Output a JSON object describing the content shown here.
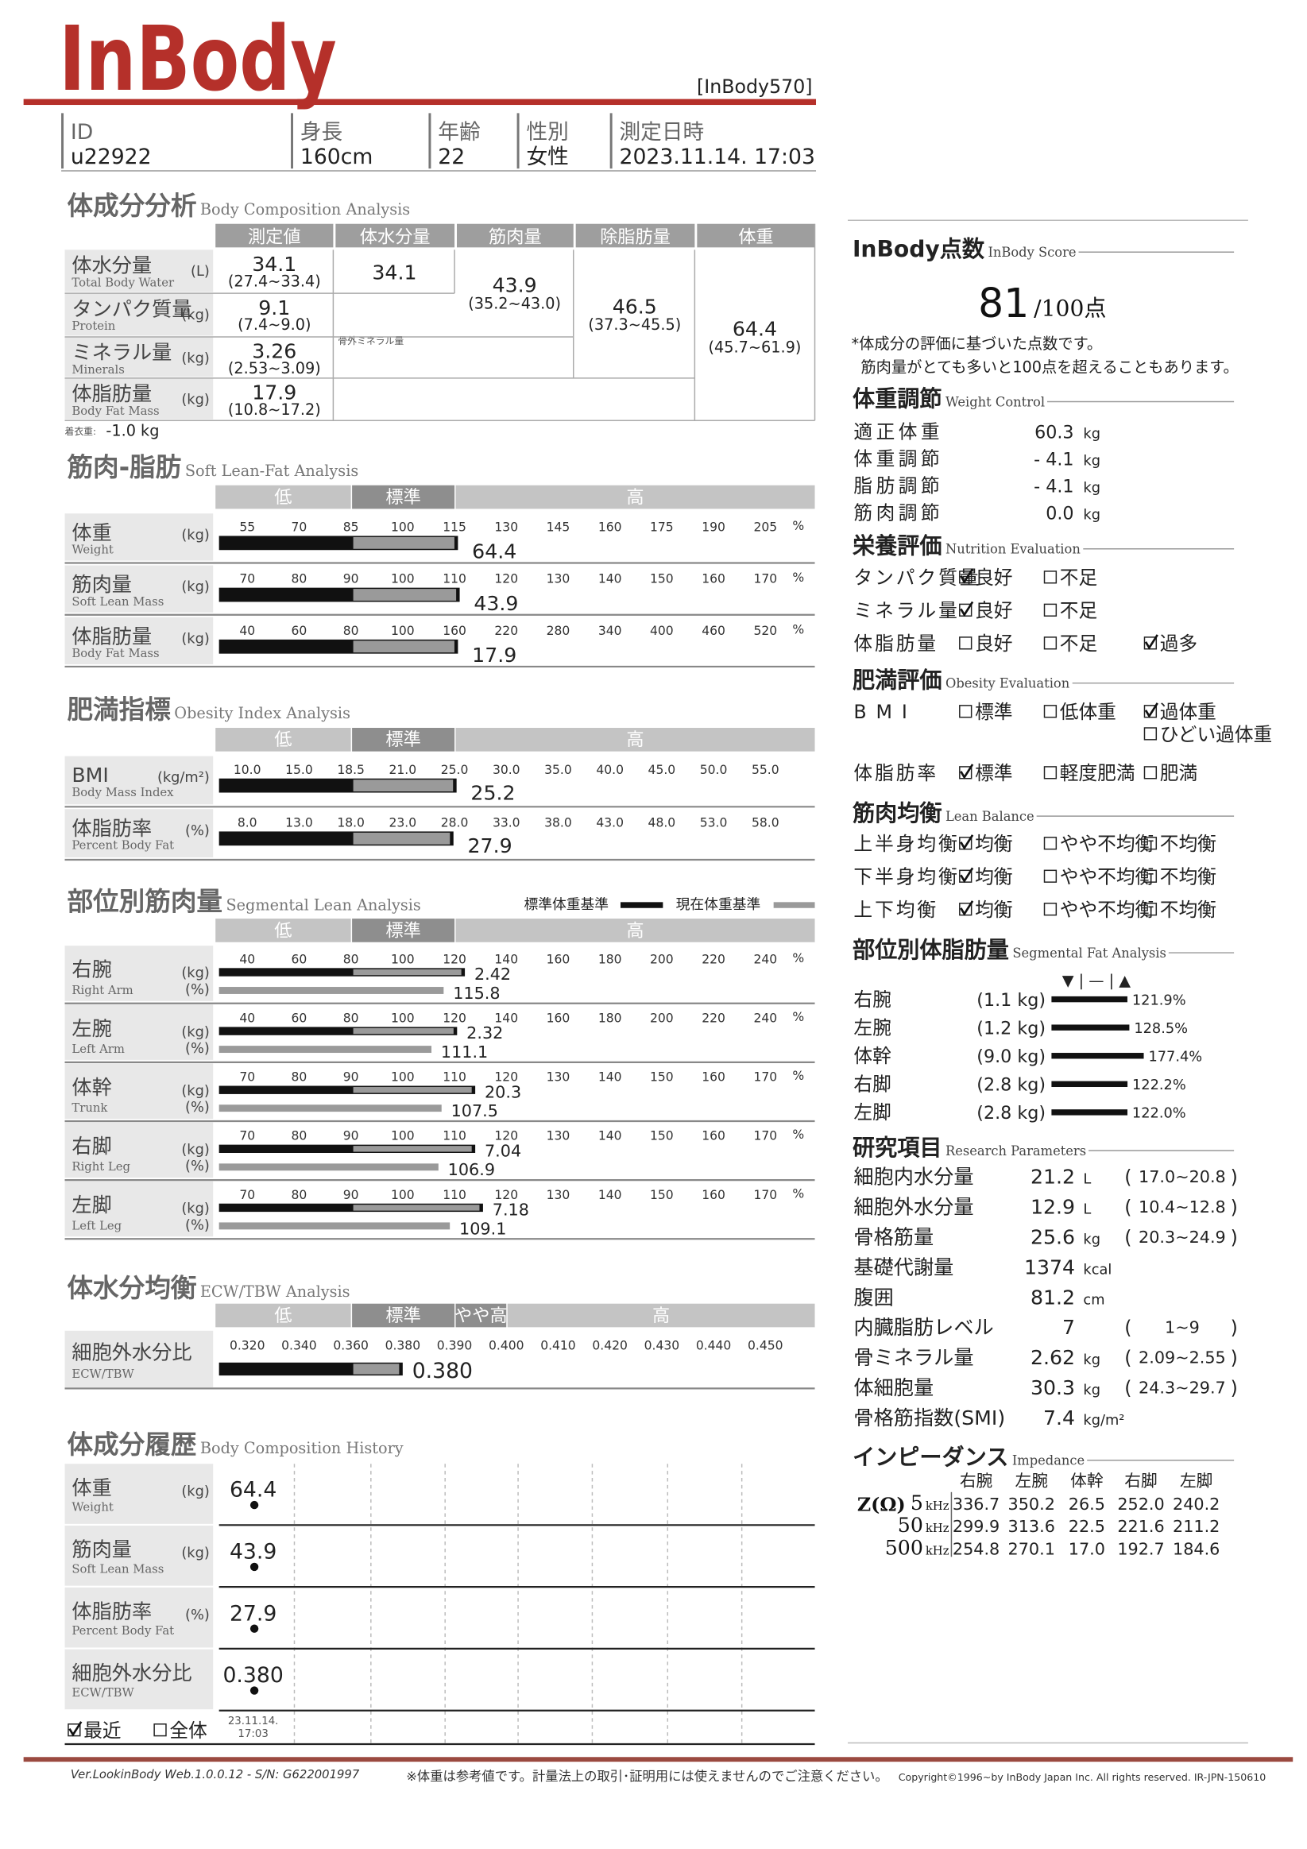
{
  "header": {
    "logo": "InBody",
    "model": "[InBody570]"
  },
  "info": [
    {
      "label": "ID",
      "value": "u22922"
    },
    {
      "label": "身長",
      "value": "160cm"
    },
    {
      "label": "年齢",
      "value": "22"
    },
    {
      "label": "性別",
      "value": "女性"
    },
    {
      "label": "測定日時",
      "value": "2023.11.14. 17:03"
    }
  ],
  "body_composition": {
    "title": "体成分分析",
    "subtitle": "Body Composition Analysis",
    "columns": [
      "測定値",
      "体水分量",
      "筋肉量",
      "除脂肪量",
      "体重"
    ],
    "rows": [
      {
        "name": "体水分量",
        "name_en": "Total Body Water",
        "unit": "(L)",
        "value": "34.1",
        "range": "(27.4~33.4)"
      },
      {
        "name": "タンパク質量",
        "name_en": "Protein",
        "unit": "(kg)",
        "value": "9.1",
        "range": "(7.4~9.0)"
      },
      {
        "name": "ミネラル量",
        "name_en": "Minerals",
        "unit": "(kg)",
        "value": "3.26",
        "range": "(2.53~3.09)"
      },
      {
        "name": "体脂肪量",
        "name_en": "Body Fat Mass",
        "unit": "(kg)",
        "value": "17.9",
        "range": "(10.8~17.2)"
      }
    ],
    "totals": [
      {
        "value": "34.1"
      },
      {
        "value": "43.9",
        "range": "(35.2~43.0)"
      },
      {
        "value": "46.5",
        "range": "(37.3~45.5)"
      },
      {
        "value": "64.4",
        "range": "(45.7~61.9)"
      }
    ],
    "note": "骨外ミネラル量",
    "clothes_label": "着衣重:",
    "clothes_value": "-1.0 kg"
  },
  "muscle_fat": {
    "title": "筋肉-脂肪",
    "subtitle": "Soft Lean-Fat Analysis",
    "bands": [
      "低",
      "標準",
      "高"
    ],
    "percent": "%",
    "rows": [
      {
        "name": "体重",
        "name_en": "Weight",
        "unit": "(kg)",
        "ticks": [
          55,
          70,
          85,
          100,
          115,
          130,
          145,
          160,
          175,
          190,
          205
        ],
        "value": 64.4,
        "bar": 116
      },
      {
        "name": "筋肉量",
        "name_en": "Soft Lean Mass",
        "unit": "(kg)",
        "ticks": [
          70,
          80,
          90,
          100,
          110,
          120,
          130,
          140,
          150,
          160,
          170
        ],
        "value": 43.9,
        "bar": 111
      },
      {
        "name": "体脂肪量",
        "name_en": "Body Fat Mass",
        "unit": "(kg)",
        "ticks": [
          40,
          60,
          80,
          100,
          160,
          220,
          280,
          340,
          400,
          460,
          520
        ],
        "value": 17.9,
        "bar": 164
      }
    ]
  },
  "obesity": {
    "title": "肥満指標",
    "subtitle": "Obesity Index Analysis",
    "bands": [
      "低",
      "標準",
      "高"
    ],
    "rows": [
      {
        "name": "BMI",
        "name_en": "Body Mass Index",
        "unit": "(kg/m²)",
        "ticks": [
          {
            "value": 10,
            "label": "10.0"
          },
          {
            "value": 15,
            "label": "15.0"
          },
          18.5,
          {
            "value": 21,
            "label": "21.0"
          },
          {
            "value": 25,
            "label": "25.0"
          },
          {
            "value": 30,
            "label": "30.0"
          },
          {
            "value": 35,
            "label": "35.0"
          },
          {
            "value": 40,
            "label": "40.0"
          },
          {
            "value": 45,
            "label": "45.0"
          },
          {
            "value": 50,
            "label": "50.0"
          },
          {
            "value": 55,
            "label": "55.0"
          }
        ],
        "value": 25.2
      },
      {
        "name": "体脂肪率",
        "name_en": "Percent Body Fat",
        "unit": "(%)",
        "ticks": [
          {
            "value": 8,
            "label": "8.0"
          },
          {
            "value": 13,
            "label": "13.0"
          },
          {
            "value": 18,
            "label": "18.0"
          },
          {
            "value": 23,
            "label": "23.0"
          },
          {
            "value": 28,
            "label": "28.0"
          },
          {
            "value": 33,
            "label": "33.0"
          },
          {
            "value": 38,
            "label": "38.0"
          },
          {
            "value": 43,
            "label": "43.0"
          },
          {
            "value": 48,
            "label": "48.0"
          },
          {
            "value": 53,
            "label": "53.0"
          },
          {
            "value": 58,
            "label": "58.0"
          }
        ],
        "value": 27.9
      }
    ]
  },
  "segmental_lean": {
    "title": "部位別筋肉量",
    "subtitle": "Segmental Lean Analysis",
    "bands": [
      "低",
      "標準",
      "高"
    ],
    "percent": "%",
    "legend": [
      "標準体重基準",
      "現在体重基準"
    ],
    "units": [
      "(kg)",
      "(%)"
    ],
    "rows": [
      {
        "name": "右腕",
        "name_en": "Right Arm",
        "ticks": [
          40,
          60,
          80,
          100,
          120,
          140,
          160,
          180,
          200,
          220,
          240
        ],
        "kg": 2.42,
        "kg_bar": 124,
        "pct": 115.8
      },
      {
        "name": "左腕",
        "name_en": "Left Arm",
        "ticks": [
          40,
          60,
          80,
          100,
          120,
          140,
          160,
          180,
          200,
          220,
          240
        ],
        "kg": 2.32,
        "kg_bar": 121,
        "pct": 111.1
      },
      {
        "name": "体幹",
        "name_en": "Trunk",
        "ticks": [
          70,
          80,
          90,
          100,
          110,
          120,
          130,
          140,
          150,
          160,
          170
        ],
        "kg": 20.3,
        "kg_bar": 114,
        "pct": 107.5
      },
      {
        "name": "右脚",
        "name_en": "Right Leg",
        "ticks": [
          70,
          80,
          90,
          100,
          110,
          120,
          130,
          140,
          150,
          160,
          170
        ],
        "kg": 7.04,
        "kg_bar": 114,
        "pct": 106.9
      },
      {
        "name": "左脚",
        "name_en": "Left Leg",
        "ticks": [
          70,
          80,
          90,
          100,
          110,
          120,
          130,
          140,
          150,
          160,
          170
        ],
        "kg": 7.18,
        "kg_bar": 115.5,
        "pct": 109.1
      }
    ]
  },
  "ecw": {
    "title": "体水分均衡",
    "subtitle": "ECW/TBW Analysis",
    "bands": [
      "低",
      "標準",
      "やや高",
      "高"
    ],
    "name": "細胞外水分比",
    "name_en": "ECW/TBW",
    "ticks": [
      {
        "value": 0.32,
        "label": "0.320"
      },
      {
        "value": 0.34,
        "label": "0.340"
      },
      {
        "value": 0.36,
        "label": "0.360"
      },
      {
        "value": 0.38,
        "label": "0.380"
      },
      {
        "value": 0.39,
        "label": "0.390"
      },
      {
        "value": 0.4,
        "label": "0.400"
      },
      {
        "value": 0.41,
        "label": "0.410"
      },
      {
        "value": 0.42,
        "label": "0.420"
      },
      {
        "value": 0.43,
        "label": "0.430"
      },
      {
        "value": 0.44,
        "label": "0.440"
      },
      {
        "value": 0.45,
        "label": "0.450"
      }
    ],
    "value": 0.38,
    "value_label": "0.380"
  },
  "history": {
    "title": "体成分履歴",
    "subtitle": "Body Composition History",
    "rows": [
      {
        "name": "体重",
        "name_en": "Weight",
        "unit": "(kg)",
        "value": 64.4,
        "label": "64.4"
      },
      {
        "name": "筋肉量",
        "name_en": "Soft Lean Mass",
        "unit": "(kg)",
        "value": 43.9,
        "label": "43.9"
      },
      {
        "name": "体脂肪率",
        "name_en": "Percent Body Fat",
        "unit": "(%)",
        "value": 27.9,
        "label": "27.9"
      },
      {
        "name": "細胞外水分比",
        "name_en": "ECW/TBW",
        "value": 0.38,
        "label": "0.380"
      }
    ],
    "options": [
      {
        "label": "最近",
        "checked": true
      },
      {
        "label": "全体",
        "checked": false
      }
    ],
    "date": "23.11.14.",
    "time": "17:03"
  },
  "score": {
    "title": "InBody点数",
    "subtitle": "InBody Score",
    "value": 81,
    "max": "/100点",
    "notes": [
      "*体成分の評価に基づいた点数です。",
      "筋肉量がとても多いと100点を超えることもあります。"
    ]
  },
  "weight_control": {
    "title": "体重調節",
    "subtitle": "Weight Control",
    "rows": [
      {
        "label": "適正体重",
        "value": "60.3",
        "unit": "kg"
      },
      {
        "label": "体重調節",
        "value": "- 4.1",
        "unit": "kg"
      },
      {
        "label": "脂肪調節",
        "value": "- 4.1",
        "unit": "kg"
      },
      {
        "label": "筋肉調節",
        "value": "0.0",
        "unit": "kg"
      }
    ]
  },
  "nutrition": {
    "title": "栄養評価",
    "subtitle": "Nutrition Evaluation",
    "rows": [
      {
        "label": "タンパク質量",
        "options": [
          {
            "label": "良好",
            "checked": true
          },
          {
            "label": "不足",
            "checked": false
          }
        ]
      },
      {
        "label": "ミネラル量",
        "options": [
          {
            "label": "良好",
            "checked": true
          },
          {
            "label": "不足",
            "checked": false
          }
        ]
      },
      {
        "label": "体脂肪量",
        "options": [
          {
            "label": "良好",
            "checked": false
          },
          {
            "label": "不足",
            "checked": false
          },
          {
            "label": "過多",
            "checked": true
          }
        ]
      }
    ]
  },
  "obesity_eval": {
    "title": "肥満評価",
    "subtitle": "Obesity Evaluation",
    "rows": [
      {
        "label": "BMI",
        "options": [
          {
            "label": "標準",
            "checked": false
          },
          {
            "label": "低体重",
            "checked": false
          },
          {
            "label": "過体重",
            "checked": true
          },
          {
            "label": "ひどい過体重",
            "checked": false
          }
        ]
      },
      {
        "label": "体脂肪率",
        "options": [
          {
            "label": "標準",
            "checked": true
          },
          {
            "label": "軽度肥満",
            "checked": false
          },
          {
            "label": "肥満",
            "checked": false
          }
        ]
      }
    ]
  },
  "lean_balance": {
    "title": "筋肉均衡",
    "subtitle": "Lean Balance",
    "rows": [
      {
        "label": "上半身均衡",
        "options": [
          {
            "label": "均衡",
            "checked": true
          },
          {
            "label": "やや不均衡",
            "checked": false
          },
          {
            "label": "不均衡",
            "checked": false
          }
        ]
      },
      {
        "label": "下半身均衡",
        "options": [
          {
            "label": "均衡",
            "checked": true
          },
          {
            "label": "やや不均衡",
            "checked": false
          },
          {
            "label": "不均衡",
            "checked": false
          }
        ]
      },
      {
        "label": "上下均衡",
        "options": [
          {
            "label": "均衡",
            "checked": true
          },
          {
            "label": "やや不均衡",
            "checked": false
          },
          {
            "label": "不均衡",
            "checked": false
          }
        ]
      }
    ]
  },
  "segmental_fat": {
    "title": "部位別体脂肪量",
    "subtitle": "Segmental Fat Analysis",
    "legend": "▼ | — | ▲",
    "rows": [
      {
        "label": "右腕",
        "kg": "(1.1 kg)",
        "value": 121.9,
        "label_pct": "121.9%"
      },
      {
        "label": "左腕",
        "kg": "(1.2 kg)",
        "value": 128.5,
        "label_pct": "128.5%"
      },
      {
        "label": "体幹",
        "kg": "(9.0 kg)",
        "value": 177.4,
        "label_pct": "177.4%"
      },
      {
        "label": "右脚",
        "kg": "(2.8 kg)",
        "value": 122.2,
        "label_pct": "122.2%"
      },
      {
        "label": "左脚",
        "kg": "(2.8 kg)",
        "value": 122,
        "label_pct": "122.0%"
      }
    ]
  },
  "research": {
    "title": "研究項目",
    "subtitle": "Research Parameters",
    "open": "(",
    "close": ")",
    "rows": [
      {
        "label": "細胞内水分量",
        "value": "21.2",
        "unit": "L",
        "range": "17.0~20.8"
      },
      {
        "label": "細胞外水分量",
        "value": "12.9",
        "unit": "L",
        "range": "10.4~12.8"
      },
      {
        "label": "骨格筋量",
        "value": "25.6",
        "unit": "kg",
        "range": "20.3~24.9"
      },
      {
        "label": "基礎代謝量",
        "value": "1374",
        "unit": "kcal"
      },
      {
        "label": "腹囲",
        "value": "81.2",
        "unit": "cm"
      },
      {
        "label": "内臓脂肪レベル",
        "value": "7",
        "range": "1~9"
      },
      {
        "label": "骨ミネラル量",
        "value": "2.62",
        "unit": "kg",
        "range": "2.09~2.55"
      },
      {
        "label": "体細胞量",
        "value": "30.3",
        "unit": "kg",
        "range": "24.3~29.7"
      },
      {
        "label": "骨格筋指数(SMI)",
        "value": "7.4",
        "unit": "kg/m²"
      }
    ]
  },
  "impedance": {
    "title": "インピーダンス",
    "subtitle": "Impedance",
    "z_label": "Z(Ω)",
    "columns": [
      "右腕",
      "左腕",
      "体幹",
      "右脚",
      "左脚"
    ],
    "freq_unit": "kHz",
    "rows": [
      {
        "freq": "5",
        "values": [
          "336.7",
          "350.2",
          "26.5",
          "252.0",
          "240.2"
        ]
      },
      {
        "freq": "50",
        "values": [
          "299.9",
          "313.6",
          "22.5",
          "221.6",
          "211.2"
        ]
      },
      {
        "freq": "500",
        "values": [
          "254.8",
          "270.1",
          "17.0",
          "192.7",
          "184.6"
        ]
      }
    ]
  },
  "footer": {
    "left": "Ver.LookinBody Web.1.0.0.12 - S/N: G622001997",
    "center": "※体重は参考値です。計量法上の取引･証明用には使えませんのでご注意ください。",
    "right": "Copyright©1996~by InBody Japan Inc. All rights reserved. IR-JPN-150610"
  }
}
